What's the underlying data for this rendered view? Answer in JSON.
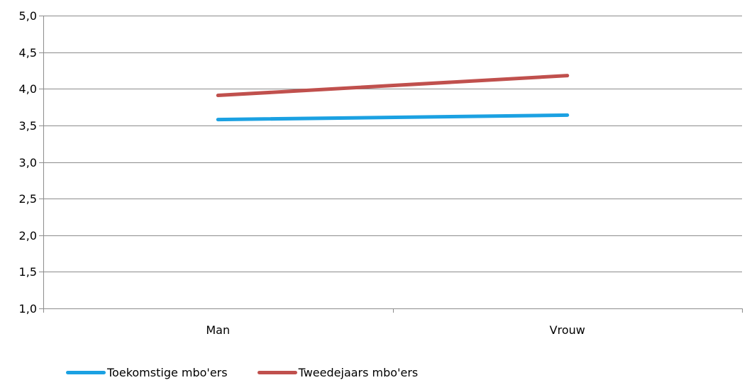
{
  "chart_data": {
    "type": "line",
    "categories": [
      "Man",
      "Vrouw"
    ],
    "ylim": [
      1.0,
      5.0
    ],
    "yticks": [
      "1,0",
      "1,5",
      "2,0",
      "2,5",
      "3,0",
      "3,5",
      "4,0",
      "4,5",
      "5,0"
    ],
    "ytick_values": [
      1.0,
      1.5,
      2.0,
      2.5,
      3.0,
      3.5,
      4.0,
      4.5,
      5.0
    ],
    "grid": true,
    "legend_position": "bottom-left",
    "series": [
      {
        "name": "Toekomstige mbo'ers",
        "color": "#1BA1E2",
        "values": [
          3.58,
          3.64
        ]
      },
      {
        "name": "Tweedejaars mbo'ers",
        "color": "#C0504D",
        "values": [
          3.91,
          4.18
        ]
      }
    ]
  }
}
